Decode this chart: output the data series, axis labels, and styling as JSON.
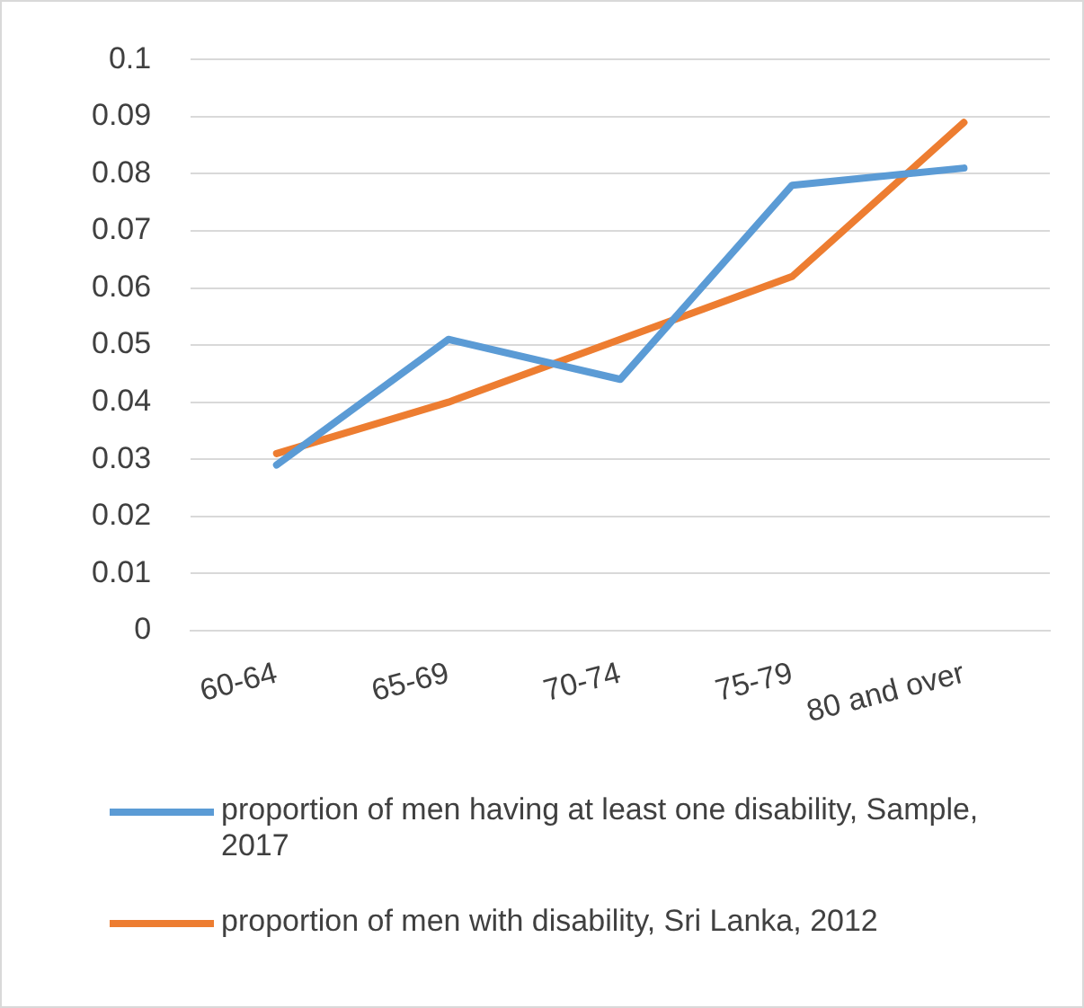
{
  "chart_data": {
    "type": "line",
    "categories": [
      "60-64",
      "65-69",
      "70-74",
      "75-79",
      "80 and over"
    ],
    "series": [
      {
        "name": "proportion of men having at least one disability, Sample, 2017",
        "color": "#5b9bd5",
        "values": [
          0.029,
          0.051,
          0.044,
          0.078,
          0.081
        ]
      },
      {
        "name": "proportion of men with disability, Sri Lanka, 2012",
        "color": "#ed7d31",
        "values": [
          0.031,
          0.04,
          0.051,
          0.062,
          0.089
        ]
      }
    ],
    "ylim": [
      0,
      0.1
    ],
    "yticks": [
      0,
      0.01,
      0.02,
      0.03,
      0.04,
      0.05,
      0.06,
      0.07,
      0.08,
      0.09,
      0.1
    ],
    "grid": "y",
    "legend": "bottom",
    "marker": "none",
    "line_style": "solid"
  }
}
